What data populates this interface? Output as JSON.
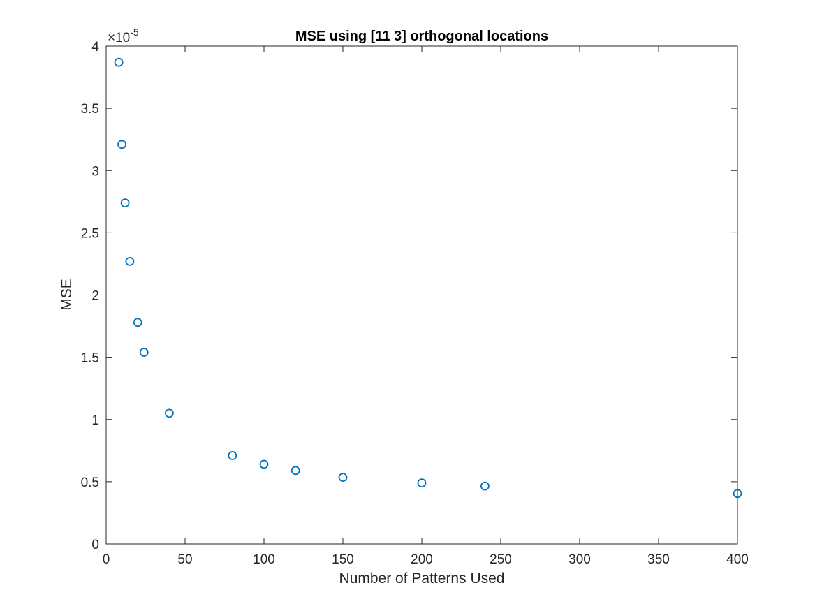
{
  "chart_data": {
    "type": "scatter",
    "title": "MSE using [11 3] orthogonal locations",
    "xlabel": "Number of Patterns Used",
    "ylabel": "MSE",
    "xlim": [
      0,
      400
    ],
    "ylim": [
      0,
      4e-05
    ],
    "x_ticks": [
      0,
      50,
      100,
      150,
      200,
      250,
      300,
      350,
      400
    ],
    "x_tick_labels": [
      "0",
      "50",
      "100",
      "150",
      "200",
      "250",
      "300",
      "350",
      "400"
    ],
    "y_ticks": [
      0,
      0.5,
      1,
      1.5,
      2,
      2.5,
      3,
      3.5,
      4
    ],
    "y_tick_labels": [
      "0",
      "0.5",
      "1",
      "1.5",
      "2",
      "2.5",
      "3",
      "3.5",
      "4"
    ],
    "y_exponent_base": "×10",
    "y_exponent_power": "-5",
    "marker": "circle",
    "marker_color": "#0072BD",
    "grid": false,
    "box": true,
    "series": [
      {
        "x": [
          8,
          10,
          12,
          15,
          20,
          24,
          40,
          80,
          100,
          120,
          150,
          200,
          240,
          400
        ],
        "y": [
          3.87e-05,
          3.21e-05,
          2.74e-05,
          2.27e-05,
          1.78e-05,
          1.54e-05,
          1.05e-05,
          7.1e-06,
          6.4e-06,
          5.9e-06,
          5.35e-06,
          4.9e-06,
          4.65e-06,
          4.05e-06
        ]
      }
    ]
  }
}
